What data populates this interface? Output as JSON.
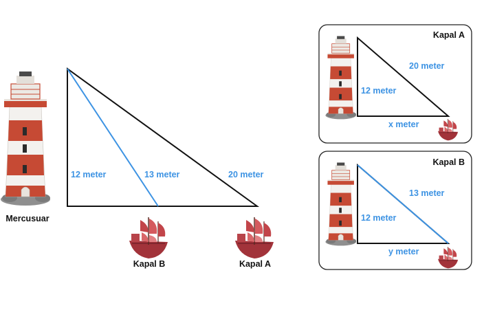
{
  "colors": {
    "measure": "#3d93e3",
    "outline": "#111111",
    "tower_red": "#c64a34",
    "ship_red": "#a2333a"
  },
  "main": {
    "lighthouse_label": "Mercusuar",
    "ship_b_label": "Kapal B",
    "ship_a_label": "Kapal A",
    "height_label": "12 meter",
    "line_b_label": "13 meter",
    "line_a_label": "20 meter"
  },
  "panel_a": {
    "title": "Kapal A",
    "height_label": "12 meter",
    "hyp_label": "20 meter",
    "base_label": "x meter"
  },
  "panel_b": {
    "title": "Kapal B",
    "height_label": "12 meter",
    "hyp_label": "13 meter",
    "base_label": "y meter"
  },
  "icons": [
    "lighthouse-icon",
    "ship-icon"
  ]
}
